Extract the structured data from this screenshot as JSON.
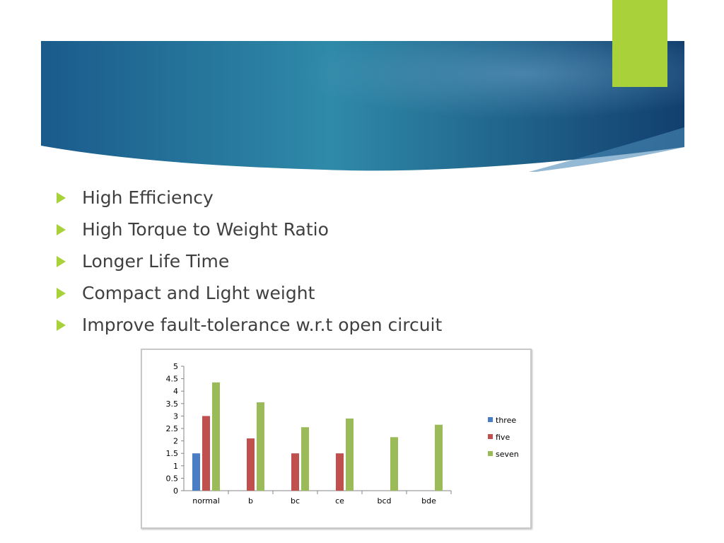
{
  "slide": {
    "bullets": [
      "High Efficiency",
      "High Torque to Weight Ratio",
      "Longer Life Time",
      "Compact and Light weight",
      "Improve fault-tolerance w.r.t open circuit"
    ],
    "colors": {
      "accent": "#a8d13a",
      "banner_dark": "#123f6e",
      "banner_light": "#2f8aa8",
      "text": "#404040"
    }
  },
  "chart_data": {
    "type": "bar",
    "categories": [
      "normal",
      "b",
      "bc",
      "ce",
      "bcd",
      "bde"
    ],
    "series": [
      {
        "name": "three",
        "color": "#4a7ec4",
        "values": [
          1.5,
          null,
          null,
          null,
          null,
          null
        ]
      },
      {
        "name": "five",
        "color": "#c0504d",
        "values": [
          3.0,
          2.1,
          1.5,
          1.5,
          null,
          null
        ]
      },
      {
        "name": "seven",
        "color": "#9bbb59",
        "values": [
          4.35,
          3.55,
          2.55,
          2.9,
          2.15,
          2.65
        ]
      }
    ],
    "ylim": [
      0,
      5
    ],
    "yticks": [
      "0",
      "0.5",
      "1",
      "1.5",
      "2",
      "2.5",
      "3",
      "3.5",
      "4",
      "4.5",
      "5"
    ],
    "ytick_values": [
      0,
      0.5,
      1,
      1.5,
      2,
      2.5,
      3,
      3.5,
      4,
      4.5,
      5
    ],
    "legend_position": "right",
    "grid": false
  }
}
